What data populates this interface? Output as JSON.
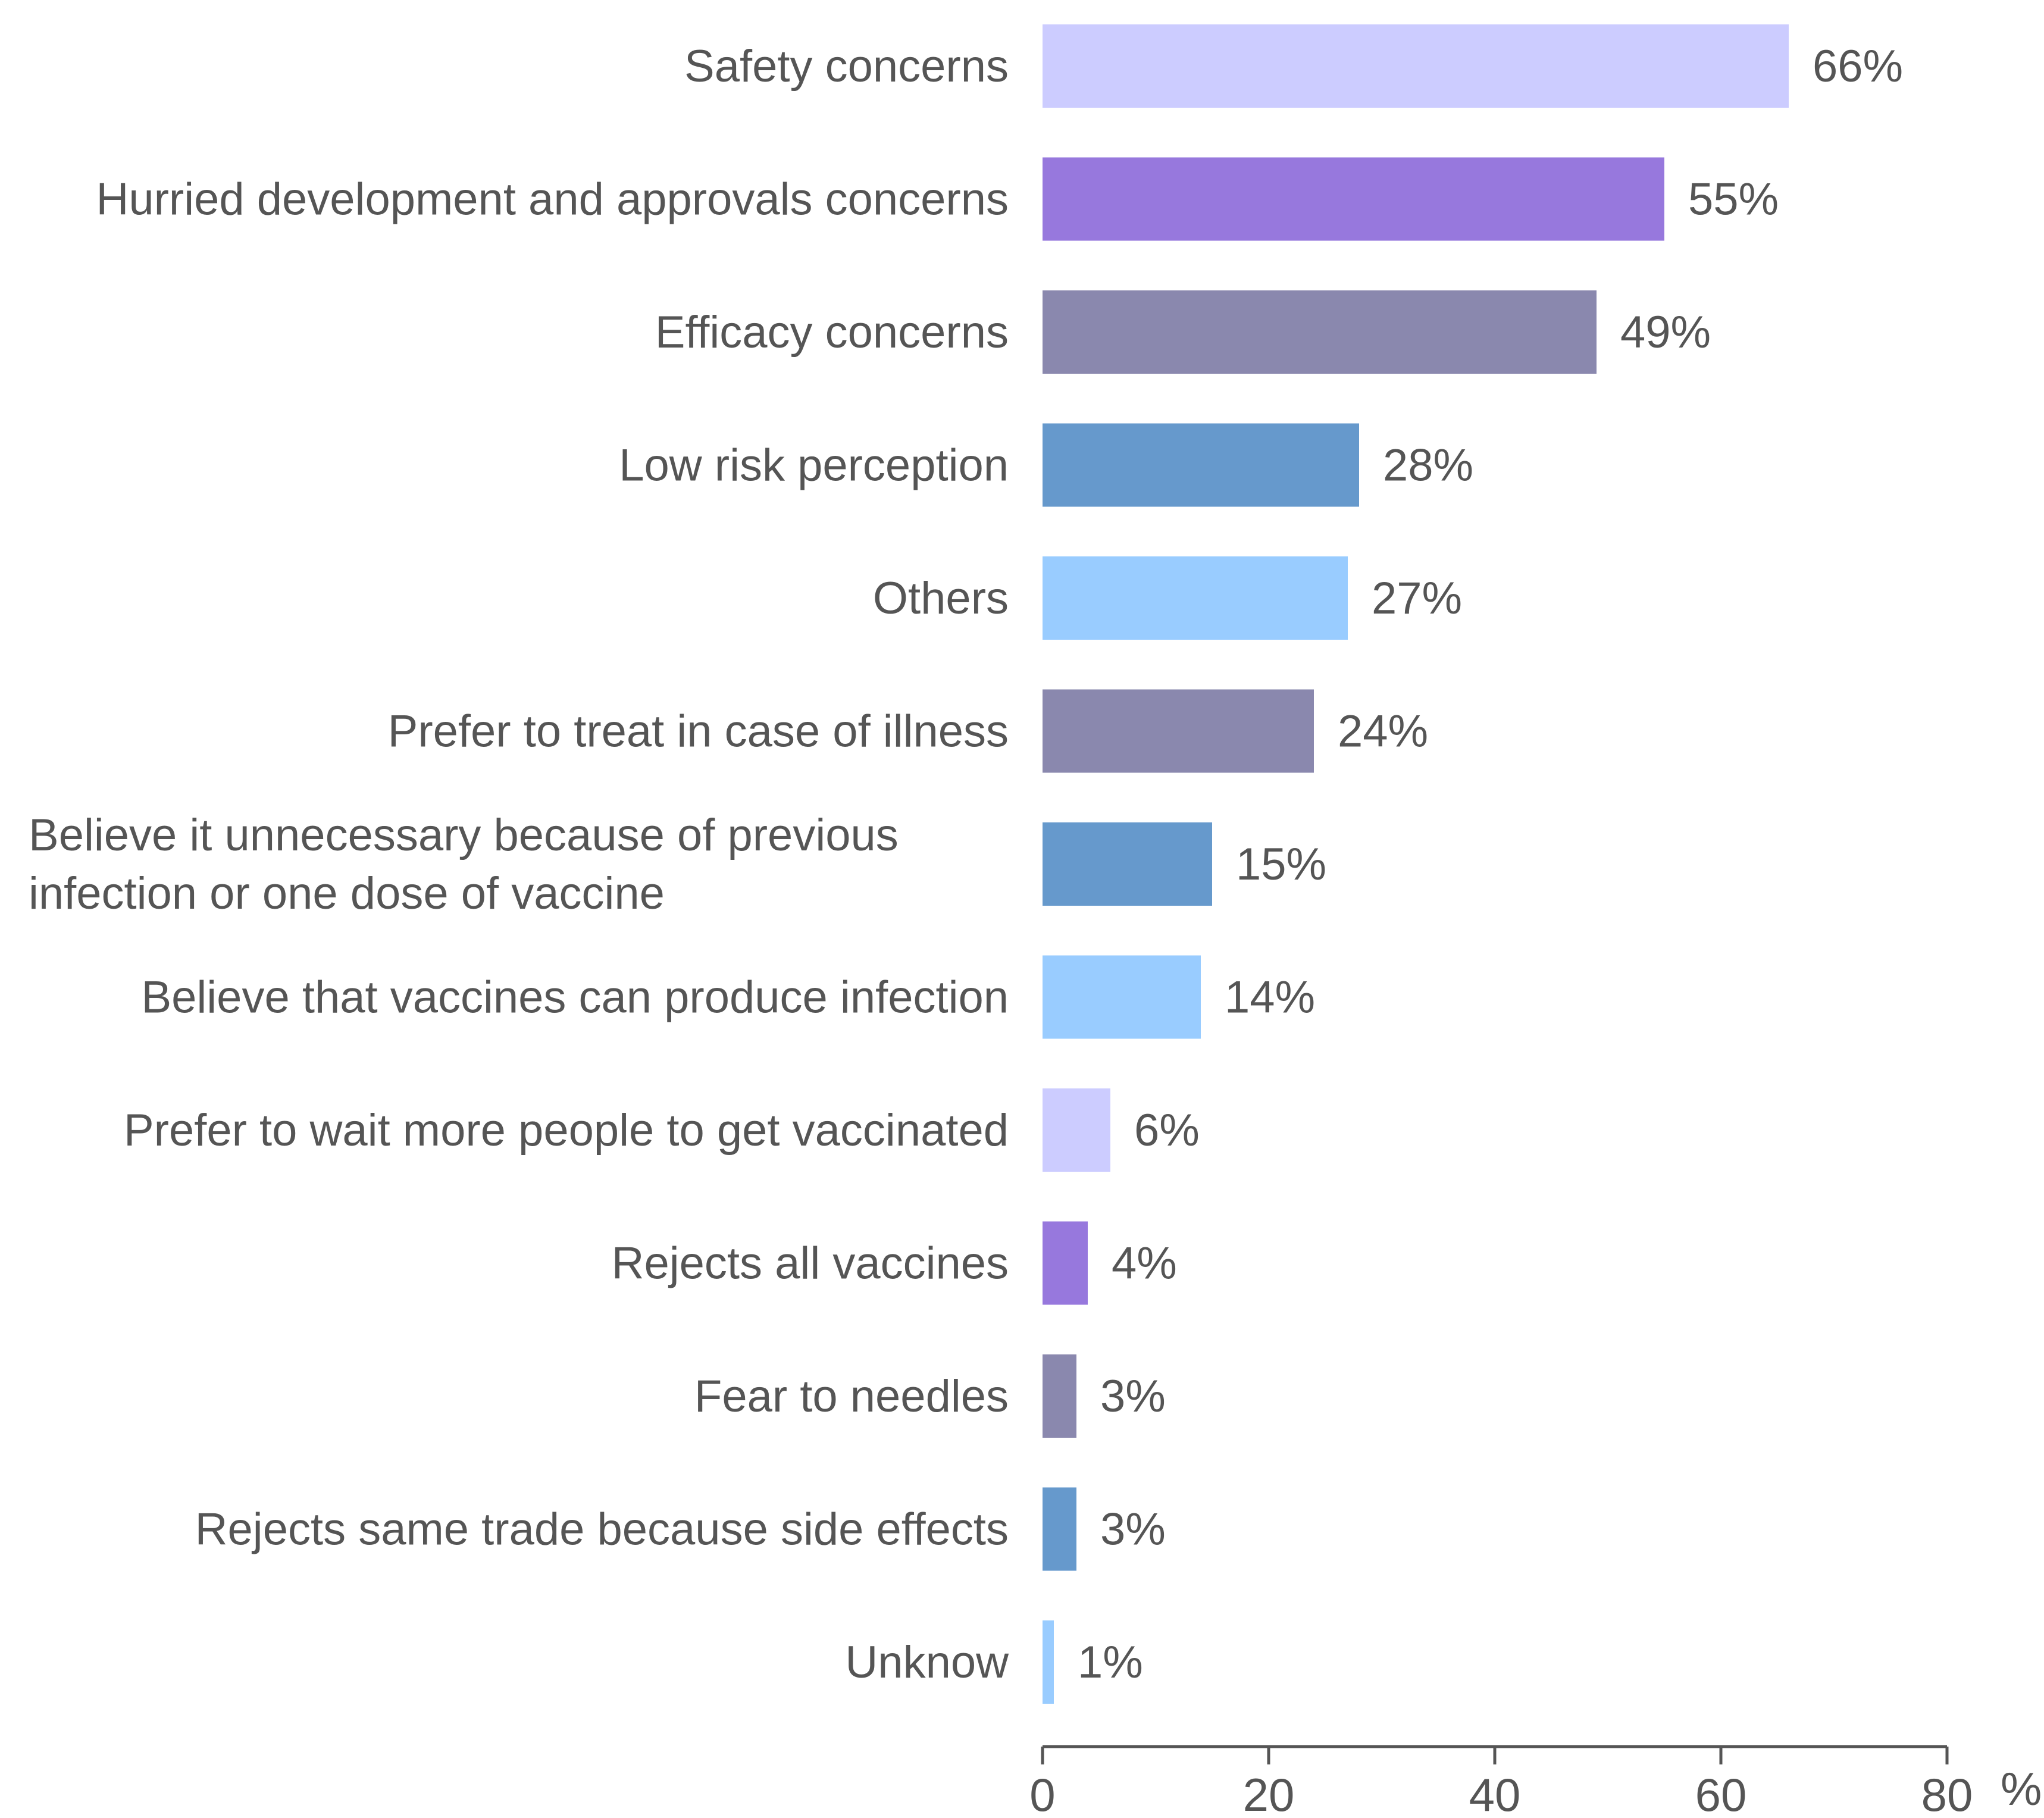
{
  "chart_data": {
    "type": "bar",
    "orientation": "horizontal",
    "title": "",
    "xlabel": "%",
    "ylabel": "",
    "xlim": [
      0,
      80
    ],
    "xticks": [
      0,
      20,
      40,
      60,
      80
    ],
    "grid": false,
    "legend": "none",
    "categories": [
      [
        "Safety concerns"
      ],
      [
        "Hurried development and approvals concerns"
      ],
      [
        "Efficacy concerns"
      ],
      [
        "Low risk perception"
      ],
      [
        "Others"
      ],
      [
        "Prefer to treat in case of illness"
      ],
      [
        "Believe it unnecessary because of previous",
        "infection or one dose of vaccine"
      ],
      [
        "Believe that vaccines can produce infection"
      ],
      [
        "Prefer to wait more people to get vaccinated"
      ],
      [
        "Rejects all vaccines"
      ],
      [
        "Fear to needles"
      ],
      [
        "Rejects same trade because side effects"
      ],
      [
        "Unknow"
      ]
    ],
    "values": [
      66,
      55,
      49,
      28,
      27,
      24,
      15,
      14,
      6,
      4,
      3,
      3,
      1
    ],
    "value_labels": [
      "66%",
      "55%",
      "49%",
      "28%",
      "27%",
      "24%",
      "15%",
      "14%",
      "6%",
      "4%",
      "3%",
      "3%",
      "1%"
    ],
    "colors": [
      "#ccccff",
      "#9778dd",
      "#8a88ae",
      "#6699cc",
      "#99ccff",
      "#8a88ae",
      "#6699cc",
      "#99ccff",
      "#ccccff",
      "#9778dd",
      "#8a88ae",
      "#6699cc",
      "#99ccff"
    ]
  }
}
